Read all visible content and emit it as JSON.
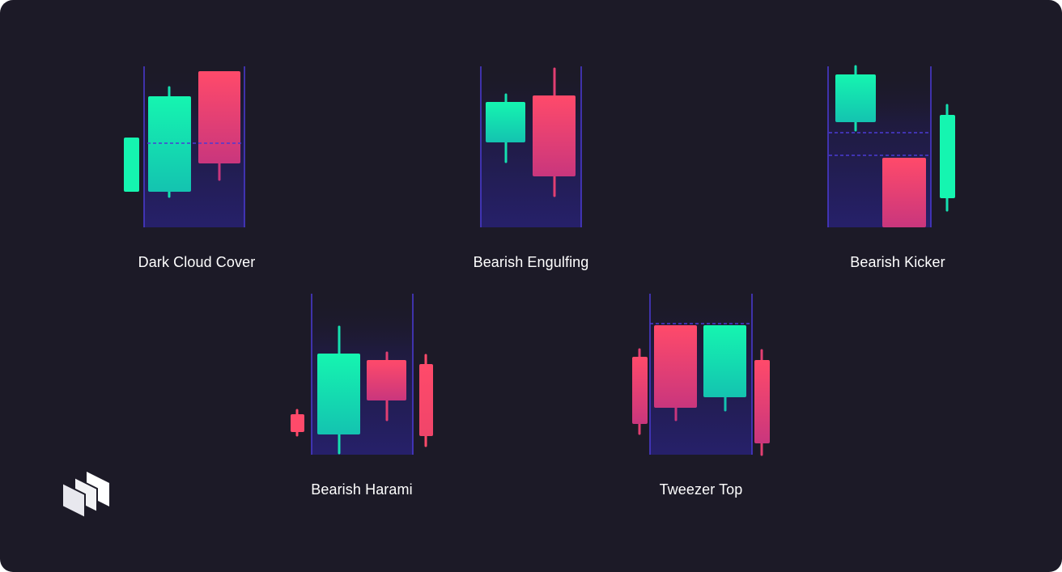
{
  "patterns": [
    {
      "label": "Dark Cloud Cover"
    },
    {
      "label": "Bearish Engulfing"
    },
    {
      "label": "Bearish Kicker"
    },
    {
      "label": "Bearish Harami"
    },
    {
      "label": "Tweezer Top"
    }
  ],
  "colors": {
    "background": "#1c1a27",
    "bullish_top": "#15f5b0",
    "bullish_bottom": "#14c3b0",
    "bearish_top": "#ff4a6a",
    "bearish_bottom": "#c9367d",
    "frame_line": "#4b3bd6",
    "highlight_top": "#1c1a27",
    "highlight_bottom": "#26206a",
    "text": "#ffffff"
  },
  "logo": {
    "icon": "stacked-cards-logo-icon"
  }
}
